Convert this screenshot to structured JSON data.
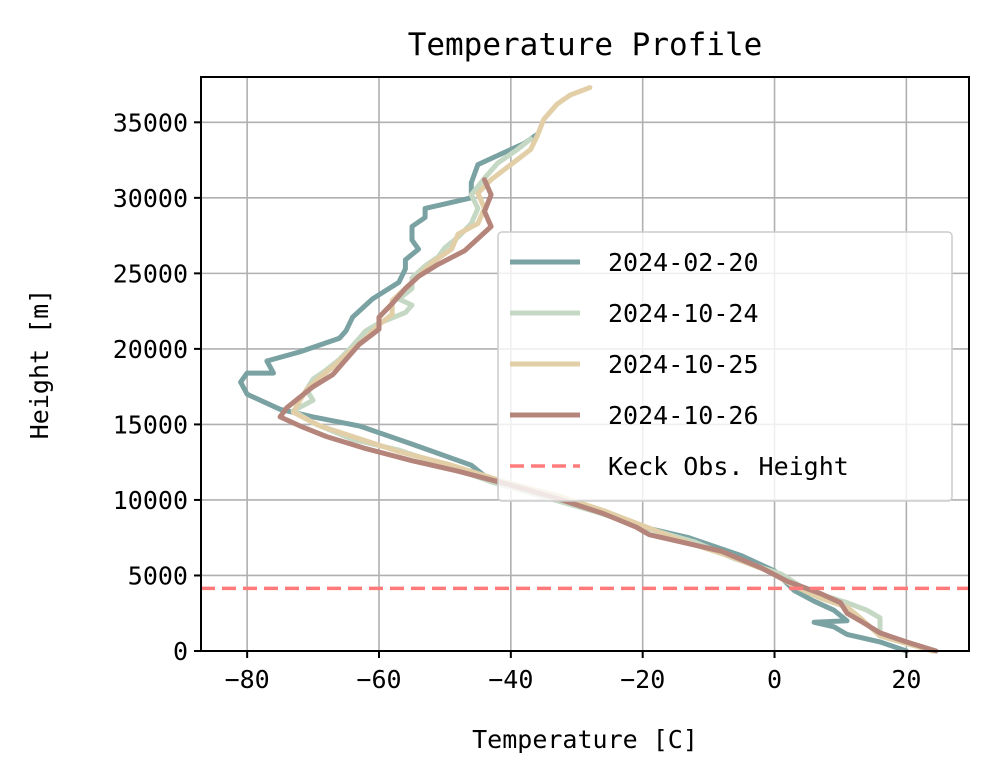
{
  "chart_data": {
    "type": "line",
    "title": "Temperature Profile",
    "xlabel": "Temperature [C]",
    "ylabel": "Height [m]",
    "xlim": [
      -87,
      29.5
    ],
    "ylim": [
      0,
      38000
    ],
    "xticks": [
      -80,
      -60,
      -40,
      -20,
      0,
      20
    ],
    "yticks": [
      0,
      5000,
      10000,
      15000,
      20000,
      25000,
      30000,
      35000
    ],
    "xtick_labels": [
      "−80",
      "−60",
      "−40",
      "−20",
      "0",
      "20"
    ],
    "ytick_labels": [
      "0",
      "5000",
      "10000",
      "15000",
      "20000",
      "25000",
      "30000",
      "35000"
    ],
    "grid": true,
    "legend_position": "center-right",
    "series": [
      {
        "name": "2024-02-20",
        "color": "#7ba2a3",
        "points": [
          [
            20,
            0
          ],
          [
            16,
            600
          ],
          [
            11,
            1100
          ],
          [
            9,
            1600
          ],
          [
            6,
            1900
          ],
          [
            11,
            2000
          ],
          [
            9,
            2700
          ],
          [
            6,
            3300
          ],
          [
            3,
            4000
          ],
          [
            0,
            5300
          ],
          [
            -5,
            6300
          ],
          [
            -13,
            7500
          ],
          [
            -20,
            8200
          ],
          [
            -25,
            9100
          ],
          [
            -32,
            10000
          ],
          [
            -38,
            10700
          ],
          [
            -44,
            11600
          ],
          [
            -46,
            12300
          ],
          [
            -55,
            13700
          ],
          [
            -63,
            14900
          ],
          [
            -70,
            15500
          ],
          [
            -75,
            16000
          ],
          [
            -80,
            17000
          ],
          [
            -81,
            17800
          ],
          [
            -80,
            18400
          ],
          [
            -76,
            18400
          ],
          [
            -77,
            19200
          ],
          [
            -72,
            19800
          ],
          [
            -66,
            20700
          ],
          [
            -65,
            21200
          ],
          [
            -64,
            22100
          ],
          [
            -61,
            23300
          ],
          [
            -57,
            24400
          ],
          [
            -56,
            25300
          ],
          [
            -56,
            25900
          ],
          [
            -54,
            26600
          ],
          [
            -55,
            27200
          ],
          [
            -55,
            28100
          ],
          [
            -53,
            28700
          ],
          [
            -53,
            29300
          ],
          [
            -50,
            29600
          ],
          [
            -46,
            30000
          ],
          [
            -46,
            31000
          ],
          [
            -45,
            32200
          ],
          [
            -42,
            32800
          ],
          [
            -38,
            33600
          ],
          [
            -36,
            34200
          ]
        ]
      },
      {
        "name": "2024-10-24",
        "color": "#c5d8c4",
        "points": [
          [
            24,
            0
          ],
          [
            20,
            500
          ],
          [
            16,
            1000
          ],
          [
            16,
            2200
          ],
          [
            14,
            2700
          ],
          [
            11,
            3200
          ],
          [
            5,
            4000
          ],
          [
            1,
            5100
          ],
          [
            -6,
            6100
          ],
          [
            -12,
            7200
          ],
          [
            -20,
            8200
          ],
          [
            -27,
            9200
          ],
          [
            -35,
            10200
          ],
          [
            -43,
            11200
          ],
          [
            -50,
            12300
          ],
          [
            -57,
            13300
          ],
          [
            -64,
            14000
          ],
          [
            -70,
            15100
          ],
          [
            -73,
            15900
          ],
          [
            -70,
            16600
          ],
          [
            -71,
            17300
          ],
          [
            -70,
            18000
          ],
          [
            -68,
            18600
          ],
          [
            -66,
            19300
          ],
          [
            -64,
            20200
          ],
          [
            -62,
            21200
          ],
          [
            -60,
            21700
          ],
          [
            -56,
            22400
          ],
          [
            -55,
            22900
          ],
          [
            -57,
            23300
          ],
          [
            -55,
            24000
          ],
          [
            -55,
            24700
          ],
          [
            -53,
            25500
          ],
          [
            -51,
            26100
          ],
          [
            -50,
            26700
          ],
          [
            -48,
            27400
          ],
          [
            -46,
            28300
          ],
          [
            -45,
            29300
          ],
          [
            -46,
            30200
          ],
          [
            -44,
            31300
          ],
          [
            -42,
            32300
          ],
          [
            -39,
            33200
          ],
          [
            -37,
            33900
          ]
        ]
      },
      {
        "name": "2024-10-25",
        "color": "#e2cfa7",
        "points": [
          [
            24,
            0
          ],
          [
            20,
            500
          ],
          [
            16,
            1000
          ],
          [
            13,
            2200
          ],
          [
            11,
            2900
          ],
          [
            7,
            3500
          ],
          [
            3,
            4300
          ],
          [
            -1,
            5300
          ],
          [
            -7,
            6300
          ],
          [
            -14,
            7300
          ],
          [
            -20,
            8300
          ],
          [
            -26,
            9300
          ],
          [
            -33,
            10300
          ],
          [
            -41,
            11200
          ],
          [
            -49,
            12300
          ],
          [
            -57,
            13200
          ],
          [
            -64,
            14200
          ],
          [
            -69,
            14900
          ],
          [
            -73,
            15800
          ],
          [
            -72,
            16600
          ],
          [
            -71,
            17300
          ],
          [
            -69,
            18100
          ],
          [
            -67,
            18800
          ],
          [
            -65,
            19600
          ],
          [
            -62,
            20700
          ],
          [
            -60,
            21600
          ],
          [
            -58,
            22300
          ],
          [
            -58,
            23200
          ],
          [
            -56,
            24000
          ],
          [
            -54,
            24800
          ],
          [
            -52,
            25700
          ],
          [
            -49,
            26600
          ],
          [
            -48,
            27600
          ],
          [
            -45,
            28300
          ],
          [
            -44,
            29300
          ],
          [
            -45,
            30300
          ],
          [
            -43,
            31200
          ],
          [
            -40,
            32200
          ],
          [
            -37,
            33200
          ],
          [
            -36,
            34100
          ],
          [
            -35,
            35200
          ],
          [
            -33,
            36200
          ],
          [
            -31,
            36800
          ],
          [
            -28,
            37300
          ]
        ]
      },
      {
        "name": "2024-10-26",
        "color": "#b5857b",
        "points": [
          [
            24.5,
            0
          ],
          [
            20,
            600
          ],
          [
            16,
            1200
          ],
          [
            13,
            2000
          ],
          [
            11,
            2500
          ],
          [
            10,
            3200
          ],
          [
            7,
            3800
          ],
          [
            2,
            4600
          ],
          [
            -2,
            5500
          ],
          [
            -8,
            6600
          ],
          [
            -15,
            7300
          ],
          [
            -19,
            7700
          ],
          [
            -21,
            8200
          ],
          [
            -26,
            9100
          ],
          [
            -33,
            10100
          ],
          [
            -41,
            11100
          ],
          [
            -48,
            11900
          ],
          [
            -55,
            12600
          ],
          [
            -62,
            13400
          ],
          [
            -68,
            14200
          ],
          [
            -72,
            14900
          ],
          [
            -75,
            15500
          ],
          [
            -74,
            16100
          ],
          [
            -72,
            16800
          ],
          [
            -70,
            17500
          ],
          [
            -67,
            18300
          ],
          [
            -65,
            19300
          ],
          [
            -63,
            20300
          ],
          [
            -60,
            21300
          ],
          [
            -60,
            22100
          ],
          [
            -58,
            23000
          ],
          [
            -56,
            24000
          ],
          [
            -54,
            24800
          ],
          [
            -51,
            25600
          ],
          [
            -47,
            26500
          ],
          [
            -45,
            27300
          ],
          [
            -43,
            28100
          ],
          [
            -44,
            29100
          ],
          [
            -43,
            30200
          ],
          [
            -44,
            31200
          ]
        ]
      },
      {
        "name": "Keck Obs. Height",
        "color": "#ff7b7b",
        "style": "dashed",
        "y_constant": 4145
      }
    ]
  }
}
